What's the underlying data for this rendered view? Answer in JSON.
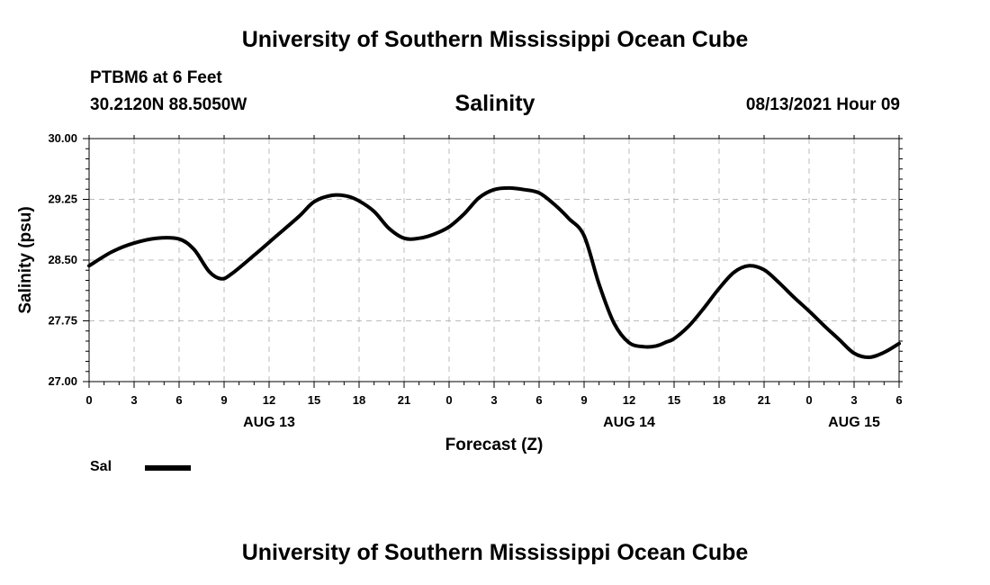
{
  "header": {
    "title": "University of Southern Mississippi Ocean Cube",
    "station": "PTBM6 at 6 Feet",
    "coords": "30.2120N  88.5050W",
    "datetime": "08/13/2021 Hour 09"
  },
  "footer": {
    "title": "University of Southern Mississippi Ocean Cube"
  },
  "legend": {
    "label": "Sal",
    "color": "#000000"
  },
  "chart_data": {
    "type": "line",
    "title": "Salinity",
    "xlabel": "Forecast (Z)",
    "ylabel": "Salinity (psu)",
    "ylim": [
      27.0,
      30.0
    ],
    "xlim": [
      0,
      54
    ],
    "x_unit": "hours from 08/13/2021 00Z",
    "grid": true,
    "legend_position": "bottom-left",
    "yticks": [
      "30.00",
      "29.25",
      "28.50",
      "27.75",
      "27.00"
    ],
    "ytick_values": [
      30.0,
      29.25,
      28.5,
      27.75,
      27.0
    ],
    "xtick_labels": [
      "0",
      "3",
      "6",
      "9",
      "12",
      "15",
      "18",
      "21",
      "0",
      "3",
      "6",
      "9",
      "12",
      "15",
      "18",
      "21",
      "0",
      "3",
      "6"
    ],
    "day_labels": [
      {
        "label": "AUG 13",
        "hour": 12
      },
      {
        "label": "AUG 14",
        "hour": 36
      },
      {
        "label": "AUG 15",
        "hour": 51
      }
    ],
    "series": [
      {
        "name": "Sal",
        "color": "#000000",
        "x": [
          0,
          1.5,
          3,
          4.5,
          6,
          7,
          8,
          8.8,
          9.5,
          11,
          12.5,
          14,
          15,
          16.2,
          17.2,
          18,
          19,
          20,
          21,
          22,
          23,
          24,
          25,
          26,
          27,
          28,
          29,
          30,
          31,
          32,
          33,
          34,
          35,
          36,
          37,
          37.8,
          38.5,
          39,
          40,
          41,
          42,
          43,
          44,
          45,
          46,
          47,
          48,
          49,
          50,
          51,
          52,
          53,
          54
        ],
        "y": [
          28.43,
          28.6,
          28.71,
          28.77,
          28.76,
          28.63,
          28.36,
          28.27,
          28.33,
          28.56,
          28.8,
          29.04,
          29.22,
          29.3,
          29.29,
          29.23,
          29.1,
          28.89,
          28.77,
          28.77,
          28.82,
          28.91,
          29.07,
          29.27,
          29.37,
          29.39,
          29.37,
          29.33,
          29.19,
          29.01,
          28.8,
          28.2,
          27.72,
          27.48,
          27.43,
          27.44,
          27.49,
          27.53,
          27.69,
          27.91,
          28.15,
          28.35,
          28.43,
          28.38,
          28.22,
          28.04,
          27.87,
          27.69,
          27.52,
          27.35,
          27.3,
          27.36,
          27.47
        ]
      }
    ]
  }
}
